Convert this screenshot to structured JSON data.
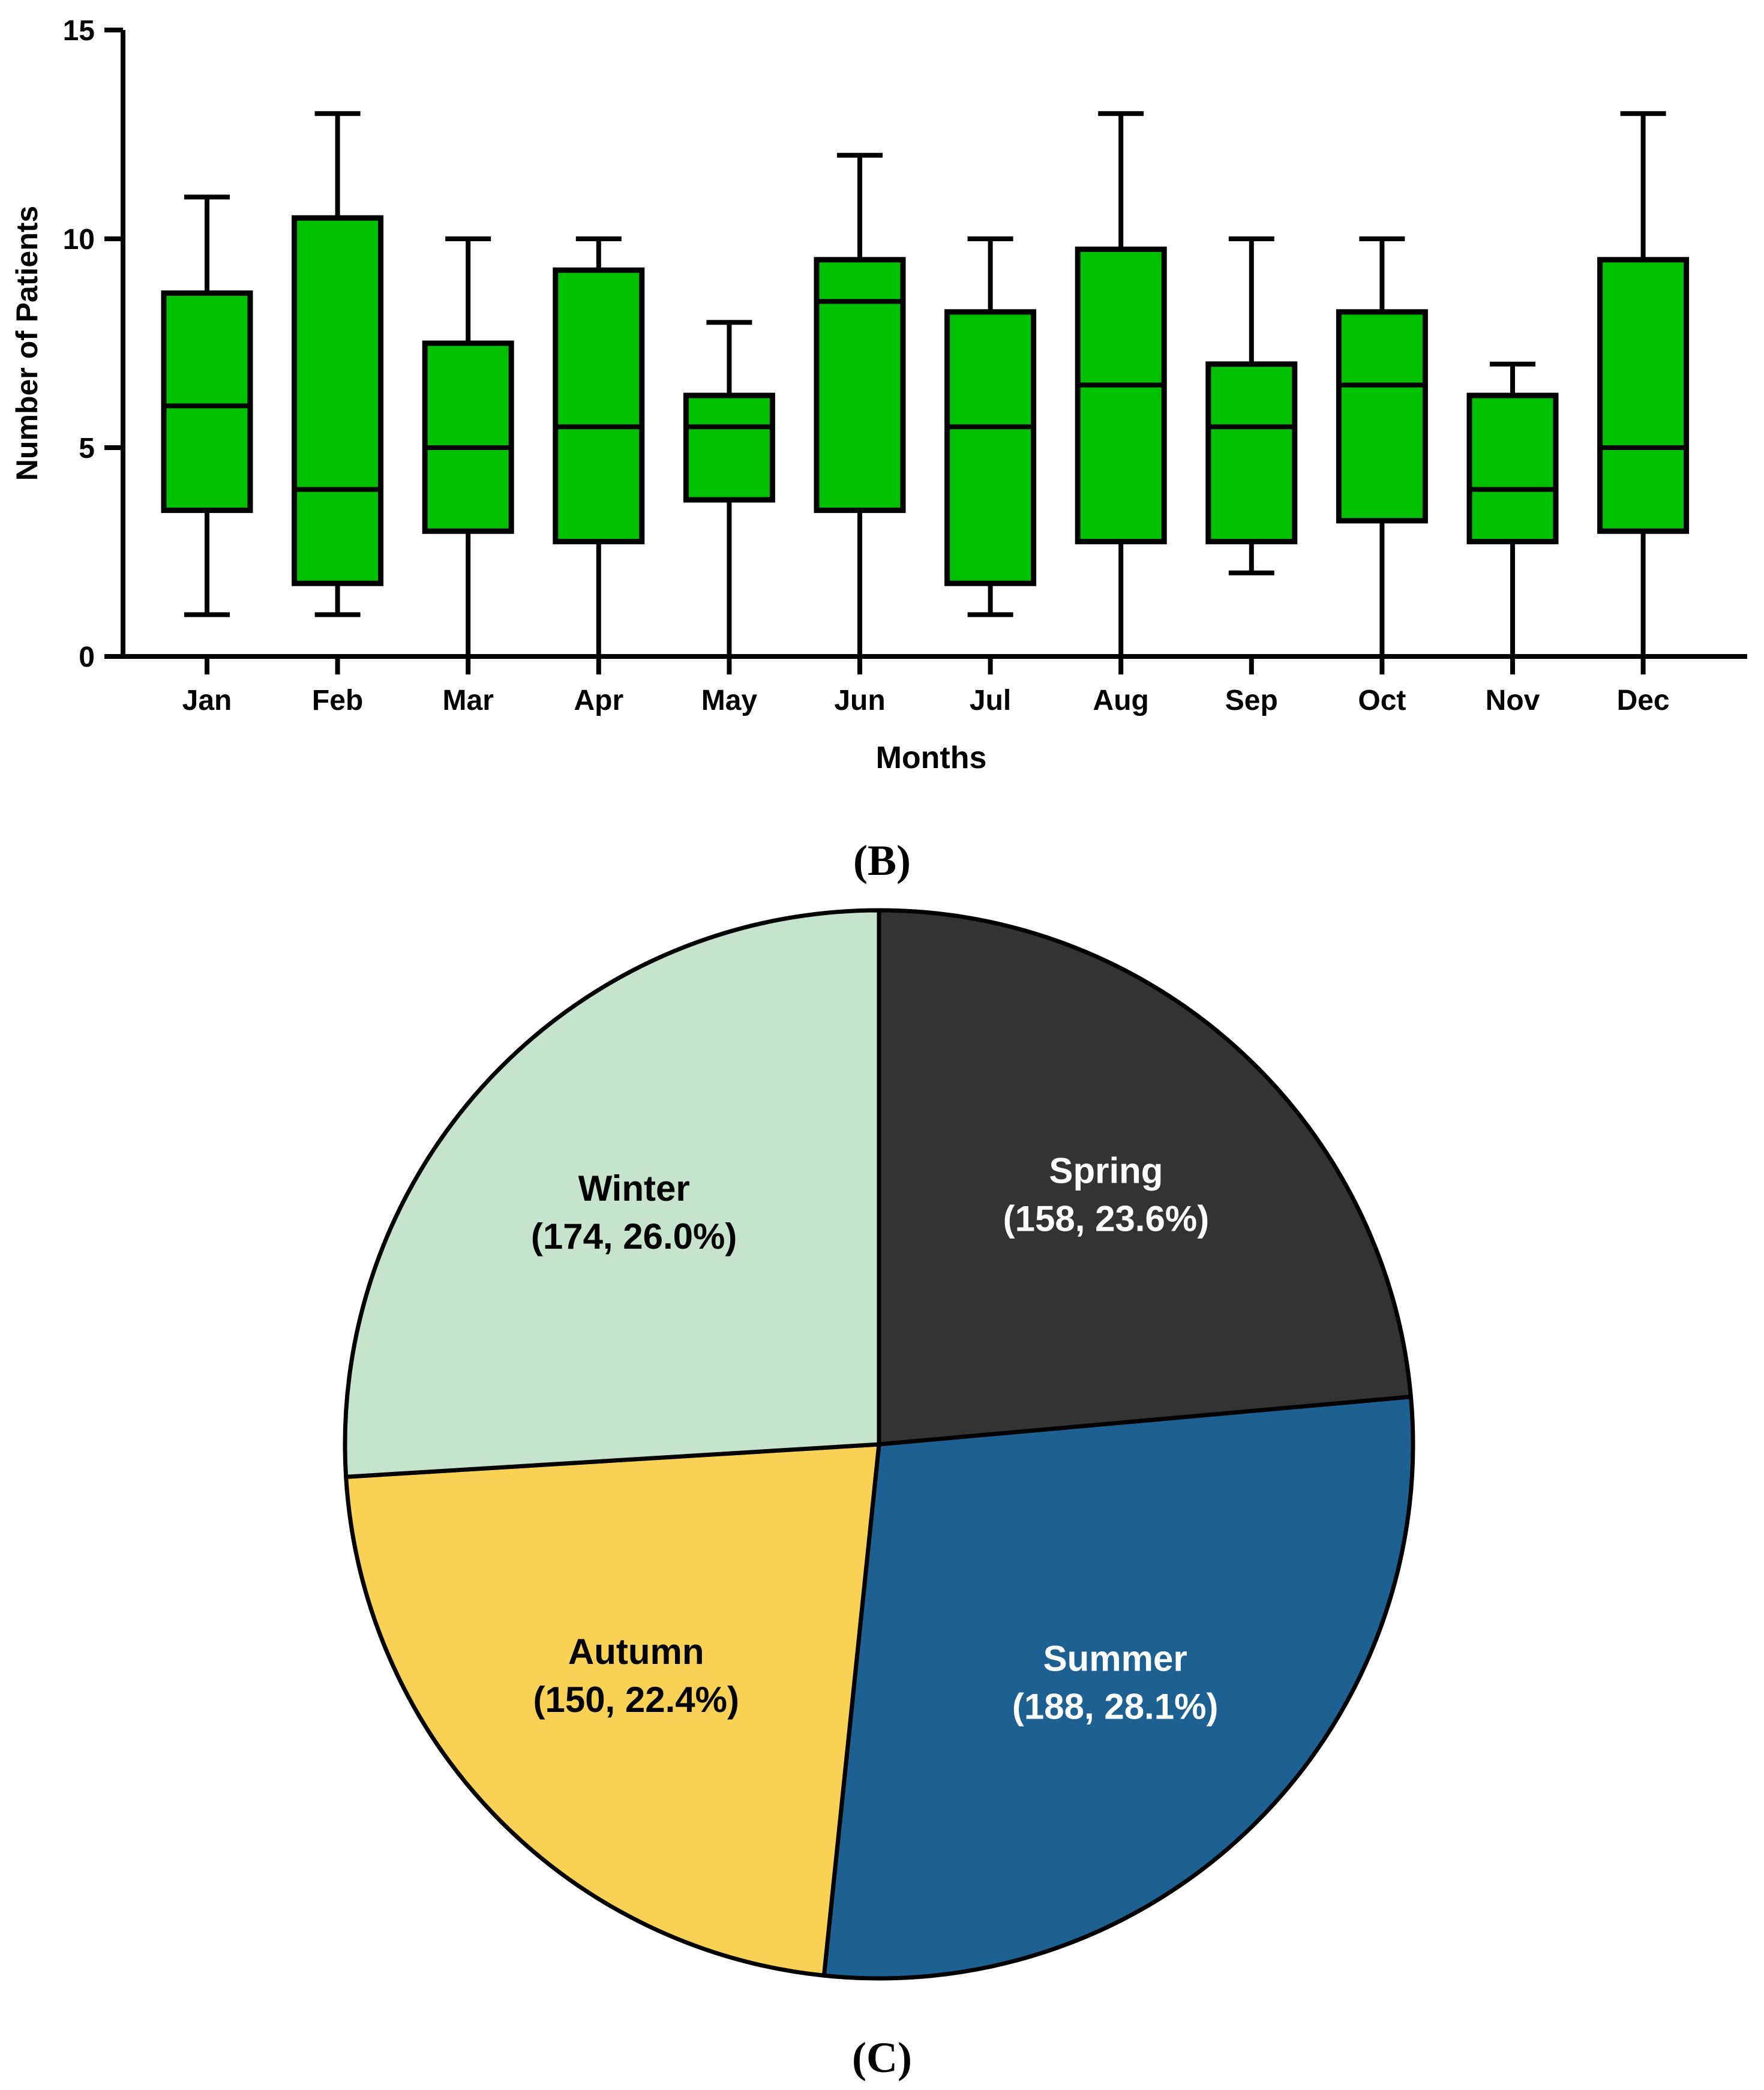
{
  "panel_labels": {
    "box": "(B)",
    "pie": "(C)"
  },
  "colors": {
    "box_fill": "#00C000",
    "outline": "#000000",
    "slices": [
      "#333333",
      "#1C6192",
      "#F8D155",
      "#C6E3CC"
    ],
    "slice_text": [
      "#ffffff",
      "#ffffff",
      "#000000",
      "#000000"
    ]
  },
  "chart_data": [
    {
      "type": "box",
      "title": "",
      "xlabel": "Months",
      "ylabel": "Number of Patients",
      "ylim": [
        0,
        15
      ],
      "yticks": [
        0,
        5,
        10,
        15
      ],
      "categories": [
        "Jan",
        "Feb",
        "Mar",
        "Apr",
        "May",
        "Jun",
        "Jul",
        "Aug",
        "Sep",
        "Oct",
        "Nov",
        "Dec"
      ],
      "boxes": [
        {
          "min": 1,
          "q1": 3.5,
          "median": 6,
          "q3": 8.7,
          "max": 11
        },
        {
          "min": 1,
          "q1": 1.75,
          "median": 4,
          "q3": 10.5,
          "max": 13
        },
        {
          "min": 0,
          "q1": 3,
          "median": 5,
          "q3": 7.5,
          "max": 10
        },
        {
          "min": 0,
          "q1": 2.75,
          "median": 5.5,
          "q3": 9.25,
          "max": 10
        },
        {
          "min": 0,
          "q1": 3.75,
          "median": 5.5,
          "q3": 6.25,
          "max": 8
        },
        {
          "min": 0,
          "q1": 3.5,
          "median": 8.5,
          "q3": 9.5,
          "max": 12
        },
        {
          "min": 1,
          "q1": 1.75,
          "median": 5.5,
          "q3": 8.25,
          "max": 10
        },
        {
          "min": 0,
          "q1": 2.75,
          "median": 6.5,
          "q3": 9.75,
          "max": 13
        },
        {
          "min": 2,
          "q1": 2.75,
          "median": 5.5,
          "q3": 7,
          "max": 10
        },
        {
          "min": 0,
          "q1": 3.25,
          "median": 6.5,
          "q3": 8.25,
          "max": 10
        },
        {
          "min": 0,
          "q1": 2.75,
          "median": 4,
          "q3": 6.25,
          "max": 7
        },
        {
          "min": 0,
          "q1": 3,
          "median": 5,
          "q3": 9.5,
          "max": 13
        }
      ]
    },
    {
      "type": "pie",
      "title": "",
      "slices": [
        {
          "name": "Spring",
          "value": 158,
          "percent": "23.6%",
          "detail": "(158, 23.6%)"
        },
        {
          "name": "Summer",
          "value": 188,
          "percent": "28.1%",
          "detail": "(188, 28.1%)"
        },
        {
          "name": "Autumn",
          "value": 150,
          "percent": "22.4%",
          "detail": "(150, 22.4%)"
        },
        {
          "name": "Winter",
          "value": 174,
          "percent": "26.0%",
          "detail": "(174, 26.0%)"
        }
      ]
    }
  ]
}
